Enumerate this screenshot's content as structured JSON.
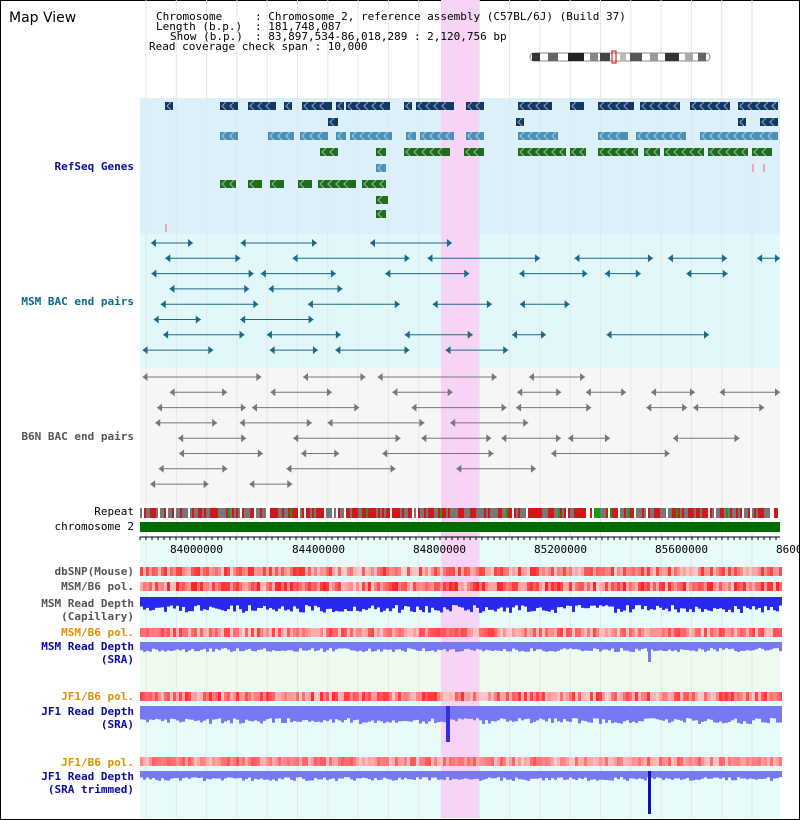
{
  "window_title": "Map View",
  "header": {
    "chromosome_key": "Chromosome",
    "chromosome_val": ": Chromosome 2, reference assembly (C57BL/6J) (Build 37)",
    "length_key": "Length (b.p.)",
    "length_val": ": 181,748,087",
    "show_key": "Show (b.p.)",
    "show_val": ": 83,897,534-86,018,289 : 2,120,756 bp",
    "coverage": "Read coverage check span : 10,000"
  },
  "tracks": {
    "refseq": "RefSeq Genes",
    "msm_bac": "MSM BAC end pairs",
    "b6n_bac": "B6N BAC end pairs",
    "repeat": "Repeat",
    "chromosome": "chromosome 2",
    "dbsnp": "dbSNP(Mouse)",
    "msm_b6_pol": "MSM/B6 pol.",
    "msm_depth_cap_1": "MSM Read Depth",
    "msm_depth_cap_2": "(Capillary)",
    "msm_b6_pol_sra": "MSM/B6 pol.",
    "msm_depth_sra_1": "MSM Read Depth",
    "msm_depth_sra_2": "(SRA)",
    "jf1_b6_pol": "JF1/B6 pol.",
    "jf1_depth_1": "JF1 Read Depth",
    "jf1_depth_2": "(SRA)",
    "jf1_b6_pol_trim": "JF1/B6 pol.",
    "jf1_trim_1": "JF1 Read Depth",
    "jf1_trim_2": "(SRA trimmed)"
  },
  "axis": {
    "ticks": [
      "84000000",
      "84400000",
      "84800000",
      "85200000",
      "85600000",
      "8600"
    ]
  },
  "colors": {
    "refseq_bg": "#dcf0fa",
    "bac_bg": "#e2f7fa",
    "b6n_bg": "#f5f5f5",
    "highlight": "#f7d4f5",
    "gene_dark": "#12386a",
    "gene_mid": "#4a90b8",
    "gene_green": "#1e6e1e",
    "chromosome_bar": "#006b00",
    "depth_blue": "#2828f0",
    "depth_light": "#7878f5",
    "pol_red": "#ff8a8a",
    "orange_label": "#e09000",
    "blue_label": "#0a0aa0",
    "msm_label": "#0a6a8a"
  }
}
